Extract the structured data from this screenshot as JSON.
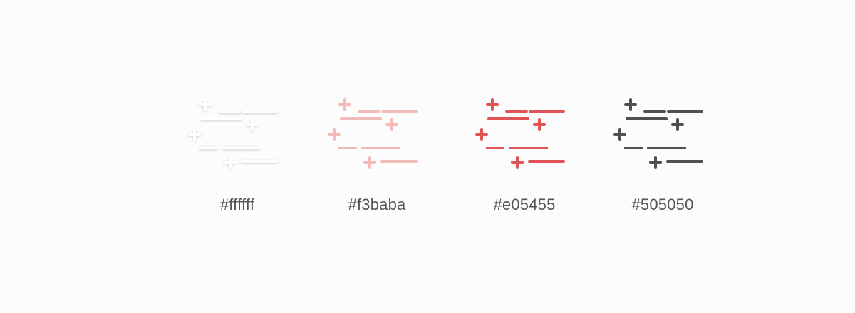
{
  "swatches": [
    {
      "label": "#ffffff",
      "color": "#ffffff",
      "icon": "text-diff-icon"
    },
    {
      "label": "#f3baba",
      "color": "#f3baba",
      "icon": "text-diff-icon"
    },
    {
      "label": "#e05455",
      "color": "#e05455",
      "icon": "text-diff-icon"
    },
    {
      "label": "#505050",
      "color": "#505050",
      "icon": "text-diff-icon"
    }
  ]
}
